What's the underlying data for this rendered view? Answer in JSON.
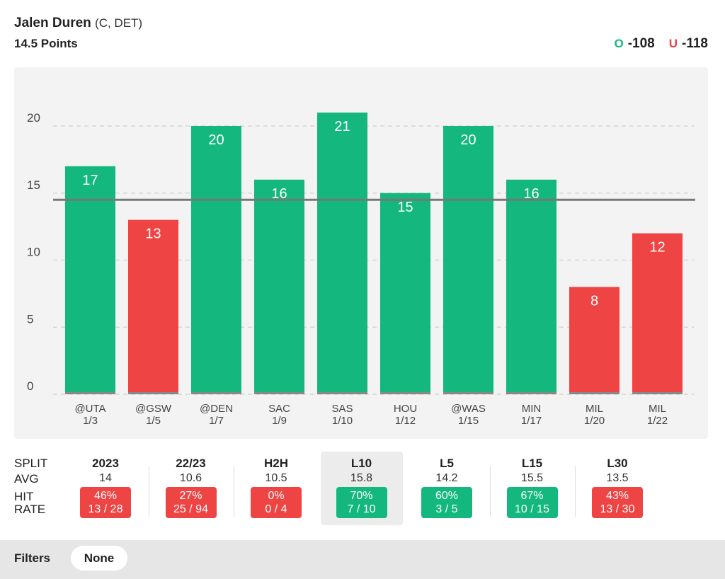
{
  "header": {
    "player_name": "Jalen Duren",
    "player_meta": "(C, DET)",
    "prop_line": "14.5 Points",
    "over_label": "O",
    "over_odds": "-108",
    "under_label": "U",
    "under_odds": "-118"
  },
  "colors": {
    "over": "#14b87f",
    "under": "#ef4444",
    "line": "#777777"
  },
  "chart_data": {
    "type": "bar",
    "title": "",
    "xlabel": "",
    "ylabel": "",
    "ylim": [
      0,
      23
    ],
    "yticks": [
      0,
      5,
      10,
      15,
      20
    ],
    "threshold": 14.5,
    "categories": [
      "@UTA",
      "@GSW",
      "@DEN",
      "SAC",
      "SAS",
      "HOU",
      "@WAS",
      "MIN",
      "MIL",
      "MIL"
    ],
    "dates": [
      "1/3",
      "1/5",
      "1/7",
      "1/9",
      "1/10",
      "1/12",
      "1/15",
      "1/17",
      "1/20",
      "1/22"
    ],
    "values": [
      17,
      13,
      20,
      16,
      21,
      15,
      20,
      16,
      8,
      12
    ]
  },
  "splits": {
    "row_labels": {
      "split": "SPLIT",
      "avg": "AVG",
      "hit": "HIT",
      "rate": "RATE"
    },
    "columns": [
      {
        "name": "2023",
        "avg": "14",
        "pct": "46%",
        "ratio": "13 / 28",
        "status": "red"
      },
      {
        "name": "22/23",
        "avg": "10.6",
        "pct": "27%",
        "ratio": "25 / 94",
        "status": "red"
      },
      {
        "name": "H2H",
        "avg": "10.5",
        "pct": "0%",
        "ratio": "0 / 4",
        "status": "red"
      },
      {
        "name": "L10",
        "avg": "15.8",
        "pct": "70%",
        "ratio": "7 / 10",
        "status": "green",
        "selected": true
      },
      {
        "name": "L5",
        "avg": "14.2",
        "pct": "60%",
        "ratio": "3 / 5",
        "status": "green"
      },
      {
        "name": "L15",
        "avg": "15.5",
        "pct": "67%",
        "ratio": "10 / 15",
        "status": "green"
      },
      {
        "name": "L30",
        "avg": "13.5",
        "pct": "43%",
        "ratio": "13 / 30",
        "status": "red"
      }
    ]
  },
  "filters": {
    "label": "Filters",
    "value": "None"
  }
}
